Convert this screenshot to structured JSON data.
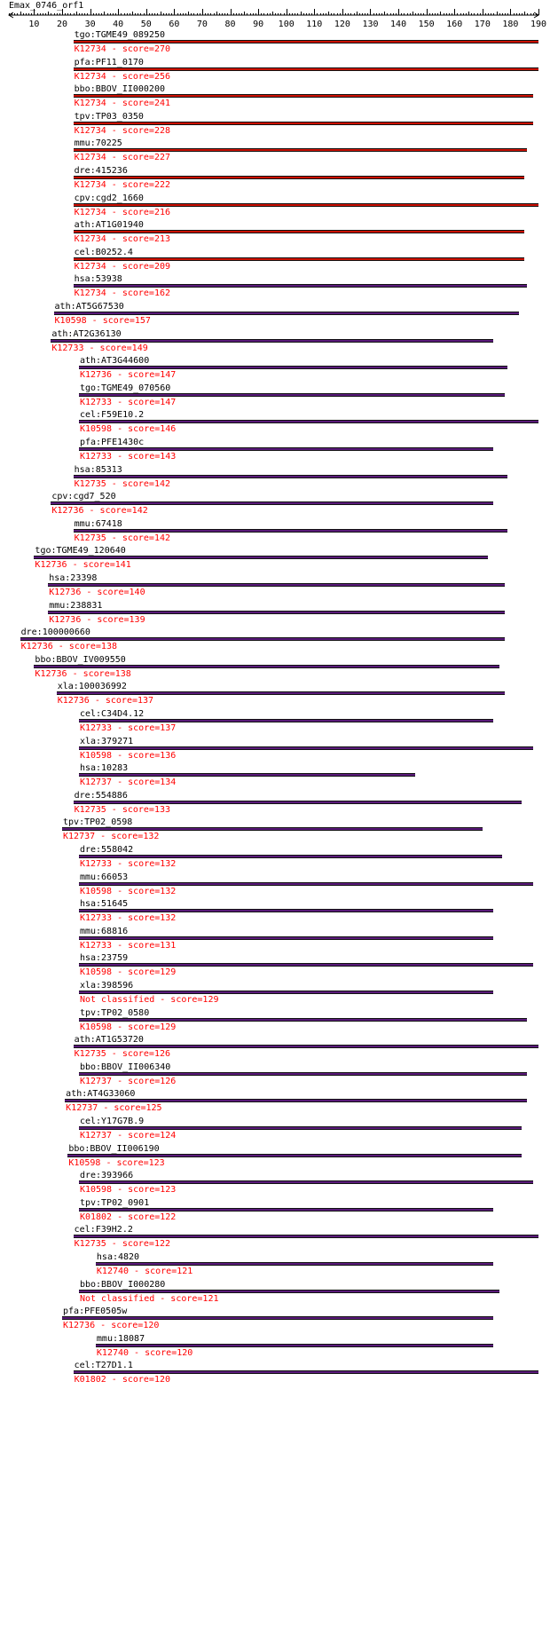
{
  "query": {
    "title": "Emax_0746_orf1"
  },
  "axis": {
    "min": 1,
    "max": 190,
    "ticks": [
      10,
      20,
      30,
      40,
      50,
      60,
      70,
      80,
      90,
      100,
      110,
      120,
      130,
      140,
      150,
      160,
      170,
      180,
      190
    ]
  },
  "colors": {
    "high": "#cc1100",
    "low": "#5a1a7a",
    "subtitle": "#ff0000",
    "axis": "#000000"
  },
  "hits": [
    {
      "gene": "tgo:TGME49_089250",
      "label": "K12734 - score=270",
      "start": 24,
      "end": 190,
      "class": "high"
    },
    {
      "gene": "pfa:PF11_0170",
      "label": "K12734 - score=256",
      "start": 24,
      "end": 190,
      "class": "high"
    },
    {
      "gene": "bbo:BBOV_II000200",
      "label": "K12734 - score=241",
      "start": 24,
      "end": 188,
      "class": "high"
    },
    {
      "gene": "tpv:TP03_0350",
      "label": "K12734 - score=228",
      "start": 24,
      "end": 188,
      "class": "high"
    },
    {
      "gene": "mmu:70225",
      "label": "K12734 - score=227",
      "start": 24,
      "end": 186,
      "class": "high"
    },
    {
      "gene": "dre:415236",
      "label": "K12734 - score=222",
      "start": 24,
      "end": 185,
      "class": "high"
    },
    {
      "gene": "cpv:cgd2_1660",
      "label": "K12734 - score=216",
      "start": 24,
      "end": 190,
      "class": "high"
    },
    {
      "gene": "ath:AT1G01940",
      "label": "K12734 - score=213",
      "start": 24,
      "end": 185,
      "class": "high"
    },
    {
      "gene": "cel:B0252.4",
      "label": "K12734 - score=209",
      "start": 24,
      "end": 185,
      "class": "high"
    },
    {
      "gene": "hsa:53938",
      "label": "K12734 - score=162",
      "start": 24,
      "end": 186,
      "class": "low"
    },
    {
      "gene": "ath:AT5G67530",
      "label": "K10598 - score=157",
      "start": 17,
      "end": 183,
      "class": "low"
    },
    {
      "gene": "ath:AT2G36130",
      "label": "K12733 - score=149",
      "start": 16,
      "end": 174,
      "class": "low"
    },
    {
      "gene": "ath:AT3G44600",
      "label": "K12736 - score=147",
      "start": 26,
      "end": 179,
      "class": "low"
    },
    {
      "gene": "tgo:TGME49_070560",
      "label": "K12733 - score=147",
      "start": 26,
      "end": 178,
      "class": "low"
    },
    {
      "gene": "cel:F59E10.2",
      "label": "K10598 - score=146",
      "start": 26,
      "end": 190,
      "class": "low"
    },
    {
      "gene": "pfa:PFE1430c",
      "label": "K12733 - score=143",
      "start": 26,
      "end": 174,
      "class": "low"
    },
    {
      "gene": "hsa:85313",
      "label": "K12735 - score=142",
      "start": 24,
      "end": 179,
      "class": "low"
    },
    {
      "gene": "cpv:cgd7_520",
      "label": "K12736 - score=142",
      "start": 16,
      "end": 174,
      "class": "low"
    },
    {
      "gene": "mmu:67418",
      "label": "K12735 - score=142",
      "start": 24,
      "end": 179,
      "class": "low"
    },
    {
      "gene": "tgo:TGME49_120640",
      "label": "K12736 - score=141",
      "start": 10,
      "end": 172,
      "class": "low"
    },
    {
      "gene": "hsa:23398",
      "label": "K12736 - score=140",
      "start": 15,
      "end": 178,
      "class": "low"
    },
    {
      "gene": "mmu:238831",
      "label": "K12736 - score=139",
      "start": 15,
      "end": 178,
      "class": "low"
    },
    {
      "gene": "dre:100000660",
      "label": "K12736 - score=138",
      "start": 5,
      "end": 178,
      "class": "low"
    },
    {
      "gene": "bbo:BBOV_IV009550",
      "label": "K12736 - score=138",
      "start": 10,
      "end": 176,
      "class": "low"
    },
    {
      "gene": "xla:100036992",
      "label": "K12736 - score=137",
      "start": 18,
      "end": 178,
      "class": "low"
    },
    {
      "gene": "cel:C34D4.12",
      "label": "K12733 - score=137",
      "start": 26,
      "end": 174,
      "class": "low"
    },
    {
      "gene": "xla:379271",
      "label": "K10598 - score=136",
      "start": 26,
      "end": 188,
      "class": "low"
    },
    {
      "gene": "hsa:10283",
      "label": "K12737 - score=134",
      "start": 26,
      "end": 146,
      "class": "low"
    },
    {
      "gene": "dre:554886",
      "label": "K12735 - score=133",
      "start": 24,
      "end": 184,
      "class": "low"
    },
    {
      "gene": "tpv:TP02_0598",
      "label": "K12737 - score=132",
      "start": 20,
      "end": 170,
      "class": "low"
    },
    {
      "gene": "dre:558042",
      "label": "K12733 - score=132",
      "start": 26,
      "end": 177,
      "class": "low"
    },
    {
      "gene": "mmu:66053",
      "label": "K10598 - score=132",
      "start": 26,
      "end": 188,
      "class": "low"
    },
    {
      "gene": "hsa:51645",
      "label": "K12733 - score=132",
      "start": 26,
      "end": 174,
      "class": "low"
    },
    {
      "gene": "mmu:68816",
      "label": "K12733 - score=131",
      "start": 26,
      "end": 174,
      "class": "low"
    },
    {
      "gene": "hsa:23759",
      "label": "K10598 - score=129",
      "start": 26,
      "end": 188,
      "class": "low"
    },
    {
      "gene": "xla:398596",
      "label": "Not classified - score=129",
      "start": 26,
      "end": 174,
      "class": "low"
    },
    {
      "gene": "tpv:TP02_0580",
      "label": "K10598 - score=129",
      "start": 26,
      "end": 186,
      "class": "low"
    },
    {
      "gene": "ath:AT1G53720",
      "label": "K12735 - score=126",
      "start": 24,
      "end": 190,
      "class": "low"
    },
    {
      "gene": "bbo:BBOV_II006340",
      "label": "K12737 - score=126",
      "start": 26,
      "end": 186,
      "class": "low"
    },
    {
      "gene": "ath:AT4G33060",
      "label": "K12737 - score=125",
      "start": 21,
      "end": 186,
      "class": "low"
    },
    {
      "gene": "cel:Y17G7B.9",
      "label": "K12737 - score=124",
      "start": 26,
      "end": 184,
      "class": "low"
    },
    {
      "gene": "bbo:BBOV_II006190",
      "label": "K10598 - score=123",
      "start": 22,
      "end": 184,
      "class": "low"
    },
    {
      "gene": "dre:393966",
      "label": "K10598 - score=123",
      "start": 26,
      "end": 188,
      "class": "low"
    },
    {
      "gene": "tpv:TP02_0901",
      "label": "K01802 - score=122",
      "start": 26,
      "end": 174,
      "class": "low"
    },
    {
      "gene": "cel:F39H2.2",
      "label": "K12735 - score=122",
      "start": 24,
      "end": 190,
      "class": "low"
    },
    {
      "gene": "hsa:4820",
      "label": "K12740 - score=121",
      "start": 32,
      "end": 174,
      "class": "low"
    },
    {
      "gene": "bbo:BBOV_I000280",
      "label": "Not classified - score=121",
      "start": 26,
      "end": 176,
      "class": "low"
    },
    {
      "gene": "pfa:PFE0505w",
      "label": "K12736 - score=120",
      "start": 20,
      "end": 174,
      "class": "low"
    },
    {
      "gene": "mmu:18087",
      "label": "K12740 - score=120",
      "start": 32,
      "end": 174,
      "class": "low"
    },
    {
      "gene": "cel:T27D1.1",
      "label": "K01802 - score=120",
      "start": 24,
      "end": 190,
      "class": "low"
    }
  ]
}
